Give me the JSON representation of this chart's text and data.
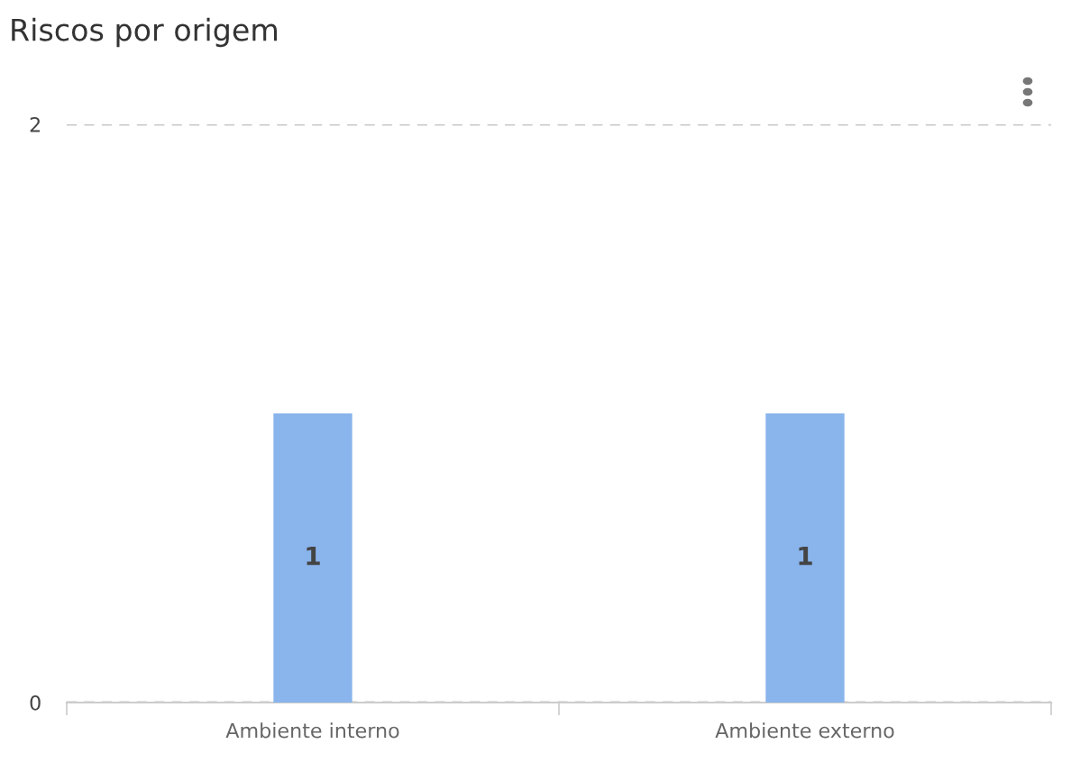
{
  "chart_data": {
    "type": "bar",
    "title": "Riscos por origem",
    "categories": [
      "Ambiente interno",
      "Ambiente externo"
    ],
    "values": [
      1,
      1
    ],
    "color": "#8ab4ec",
    "ylim": [
      0,
      2
    ],
    "yticks": [
      0,
      2
    ],
    "grid": "y",
    "data_labels": true
  }
}
